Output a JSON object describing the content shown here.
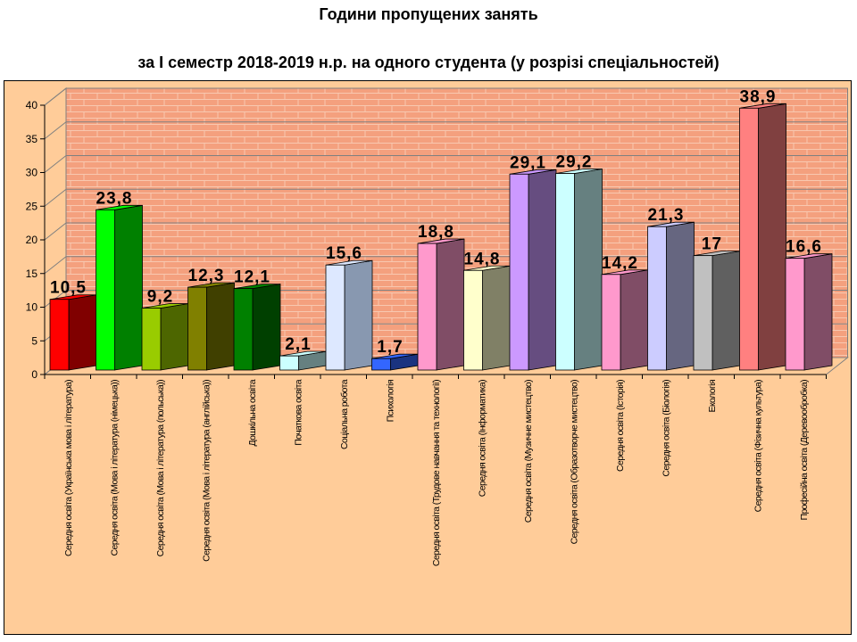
{
  "chart_data": {
    "type": "bar",
    "title": "Години пропущених занять",
    "subtitle": "за І семестр 2018-2019 н.р. на одного студента  (у розрізі  спеціальностей)",
    "xlabel": "",
    "ylabel": "",
    "ylim": [
      0,
      40
    ],
    "yticks": [
      0,
      5,
      10,
      15,
      20,
      25,
      30,
      35,
      40
    ],
    "grid": true,
    "categories": [
      "Середня освіта (Українська мова і література)",
      "Середня освіта (Мова і література (німецька))",
      "Середня освіта (Мова і література (польська))",
      "Середня освіта (Мова і література (англійська))",
      "Дошкільна освіта",
      "Початкова освіта",
      "Соціальна робота",
      "Психологія",
      "Середня освіта (Трудове навчання та технології)",
      "Середня освіта (Інформатика)",
      "Середня освіта (Музичне мистецтво)",
      "Середня освіта (Образотворче мистецтво)",
      "Середня освіта (Історія)",
      "Середня освіта (Біологія)",
      "Екологія",
      "Середня освіта (Фізична культура)",
      "Професійна освіта (Деревообробка)"
    ],
    "values": [
      10.5,
      23.8,
      9.2,
      12.3,
      12.1,
      2.1,
      15.6,
      1.7,
      18.8,
      14.8,
      29.1,
      29.2,
      14.2,
      21.3,
      17,
      38.9,
      16.6
    ],
    "value_labels": [
      "10,5",
      "23,8",
      "9,2",
      "12,3",
      "12,1",
      "2,1",
      "15,6",
      "1,7",
      "18,8",
      "14,8",
      "29,1",
      "29,2",
      "14,2",
      "21,3",
      "17",
      "38,9",
      "16,6"
    ],
    "colors": [
      {
        "front": "#ff0000",
        "side": "#800000"
      },
      {
        "front": "#00ff00",
        "side": "#008000"
      },
      {
        "front": "#99cc00",
        "side": "#4d6600"
      },
      {
        "front": "#808000",
        "side": "#404000"
      },
      {
        "front": "#008000",
        "side": "#004000"
      },
      {
        "front": "#ccffff",
        "side": "#668080"
      },
      {
        "front": "#dde8ff",
        "side": "#8898b0"
      },
      {
        "front": "#3366ff",
        "side": "#1a3380"
      },
      {
        "front": "#ff99cc",
        "side": "#804d66"
      },
      {
        "front": "#ffffcc",
        "side": "#808066"
      },
      {
        "front": "#cc99ff",
        "side": "#664d80"
      },
      {
        "front": "#ccffff",
        "side": "#668080"
      },
      {
        "front": "#ff99cc",
        "side": "#804d66"
      },
      {
        "front": "#ccccff",
        "side": "#666680"
      },
      {
        "front": "#c0c0c0",
        "side": "#606060"
      },
      {
        "front": "#ff8080",
        "side": "#804040"
      },
      {
        "front": "#ff99cc",
        "side": "#804d66"
      }
    ],
    "background_color": "#ffcc99",
    "wall_color": "#f4a07e"
  }
}
